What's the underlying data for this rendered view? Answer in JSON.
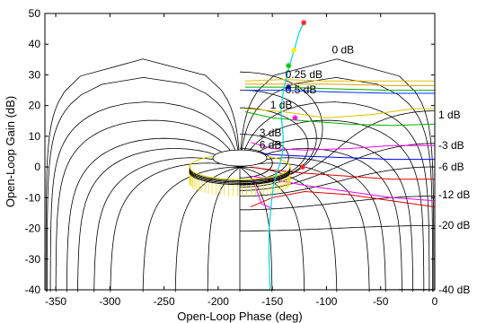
{
  "chart_data": {
    "type": "line",
    "xlabel": "Open-Loop Phase (deg)",
    "ylabel": "Open-Loop Gain (dB)",
    "xlim": [
      -360,
      0
    ],
    "ylim": [
      -40,
      50
    ],
    "xticks": [
      -350,
      -300,
      -250,
      -200,
      -150,
      -100,
      -50,
      0
    ],
    "yticks": [
      -40,
      -30,
      -20,
      -10,
      0,
      10,
      20,
      30,
      40,
      50
    ],
    "grid": false,
    "closed_loop_magnitude_contours": [
      {
        "label": "0 dB",
        "at": [
          -95,
          37
        ]
      },
      {
        "label": "0.25 dB",
        "at": [
          -138,
          29
        ]
      },
      {
        "label": "0.5 dB",
        "at": [
          -138,
          24
        ]
      },
      {
        "label": "1 dB",
        "at": [
          -152,
          19
        ]
      },
      {
        "label": "3 dB",
        "at": [
          -162,
          10
        ]
      },
      {
        "label": "6 dB",
        "at": [
          -162,
          6
        ]
      }
    ],
    "right_edge_labels": [
      "1 dB",
      "-3 dB",
      "-6 dB",
      "-12 dB",
      "-20 dB",
      "-40 dB"
    ],
    "series": [
      {
        "color": "#00d8d8",
        "style": "line",
        "x": [
          -152,
          -153,
          -153,
          -151,
          -149,
          -146,
          -143,
          -141,
          -140,
          -140,
          -141,
          -142,
          -141,
          -139,
          -135,
          -130,
          -125,
          -121
        ],
        "y": [
          -40,
          -30,
          -20,
          -12,
          -6,
          -2,
          1,
          4,
          7,
          10,
          14,
          18,
          22,
          26,
          32,
          38,
          44,
          47
        ]
      }
    ],
    "markers": [
      {
        "color": "#ff2020",
        "x": -121,
        "y": 47
      },
      {
        "color": "#ffee00",
        "x": -130,
        "y": 38
      },
      {
        "color": "#00c800",
        "x": -135,
        "y": 33
      },
      {
        "color": "#0000ff",
        "x": -135,
        "y": 26
      },
      {
        "color": "#ff00ff",
        "x": -129,
        "y": 16
      },
      {
        "color": "#ff2020",
        "x": -122,
        "y": 0
      }
    ]
  }
}
